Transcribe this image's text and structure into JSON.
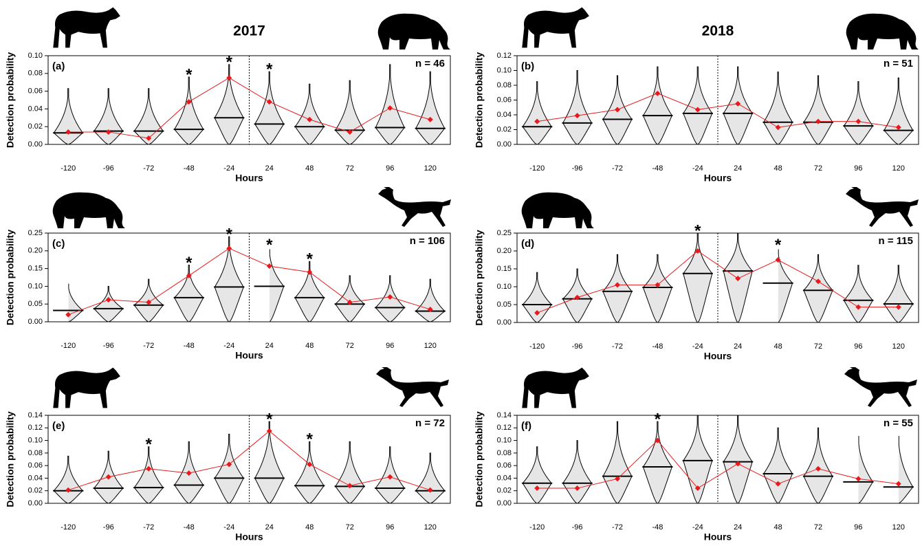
{
  "chart_data": [
    {
      "type": "violin",
      "title": "2017",
      "panel": "(a)",
      "n_label": "n = 46",
      "x_label": "Hours",
      "y_label": "Detection probability",
      "categories": [
        -120,
        -96,
        -72,
        -48,
        -24,
        24,
        48,
        72,
        96,
        120
      ],
      "observed": [
        0.014,
        0.014,
        0.007,
        0.048,
        0.075,
        0.048,
        0.028,
        0.014,
        0.041,
        0.028
      ],
      "medians": [
        0.013,
        0.015,
        0.015,
        0.017,
        0.03,
        0.023,
        0.02,
        0.016,
        0.019,
        0.018
      ],
      "upper": [
        0.063,
        0.063,
        0.063,
        0.076,
        0.09,
        0.082,
        0.068,
        0.072,
        0.09,
        0.082
      ],
      "significance": [
        null,
        null,
        null,
        "*",
        "*",
        "*",
        null,
        null,
        null,
        null
      ],
      "observed_color": "#e8191c",
      "ylim": [
        0,
        0.1
      ],
      "yticks": [
        {
          "value": 0,
          "label": "0.00"
        },
        {
          "value": 0.02,
          "label": "0.02"
        },
        {
          "value": 0.04,
          "label": "0.04"
        },
        {
          "value": 0.06,
          "label": "0.06"
        },
        {
          "value": 0.08,
          "label": "0.08"
        },
        {
          "value": 0.1,
          "label": "0.10"
        }
      ]
    },
    {
      "type": "violin",
      "title": "2018",
      "panel": "(b)",
      "n_label": "n = 51",
      "x_label": "Hours",
      "y_label": "Detection probability",
      "categories": [
        -120,
        -96,
        -72,
        -48,
        -24,
        24,
        48,
        72,
        96,
        120
      ],
      "observed": [
        0.031,
        0.039,
        0.047,
        0.069,
        0.047,
        0.055,
        0.023,
        0.031,
        0.031,
        0.023
      ],
      "medians": [
        0.024,
        0.029,
        0.034,
        0.039,
        0.042,
        0.042,
        0.03,
        0.03,
        0.025,
        0.019
      ],
      "upper": [
        0.085,
        0.1,
        0.093,
        0.105,
        0.105,
        0.105,
        0.098,
        0.093,
        0.085,
        0.09
      ],
      "significance": [
        null,
        null,
        null,
        null,
        null,
        null,
        null,
        null,
        null,
        null
      ],
      "observed_color": "#e8191c",
      "ylim": [
        0,
        0.12
      ],
      "yticks": [
        {
          "value": 0,
          "label": "0.00"
        },
        {
          "value": 0.02,
          "label": "0.02"
        },
        {
          "value": 0.04,
          "label": "0.04"
        },
        {
          "value": 0.06,
          "label": "0.06"
        },
        {
          "value": 0.08,
          "label": "0.08"
        },
        {
          "value": 0.1,
          "label": "0.10"
        },
        {
          "value": 0.12,
          "label": "0.12"
        }
      ]
    },
    {
      "type": "violin",
      "panel": "(c)",
      "n_label": "n = 106",
      "x_label": "Hours",
      "y_label": "Detection probability",
      "categories": [
        -120,
        -96,
        -72,
        -48,
        -24,
        24,
        48,
        72,
        96,
        120
      ],
      "observed": [
        0.02,
        0.062,
        0.055,
        0.13,
        0.207,
        0.157,
        0.14,
        0.055,
        0.07,
        0.035
      ],
      "medians": [
        0.032,
        0.037,
        0.047,
        0.068,
        0.098,
        0.1,
        0.068,
        0.05,
        0.04,
        0.03
      ],
      "upper": [
        0.11,
        0.1,
        0.12,
        0.16,
        0.24,
        0.21,
        0.17,
        0.13,
        0.13,
        0.12
      ],
      "significance": [
        null,
        null,
        null,
        "*",
        "*",
        "*",
        "*",
        null,
        null,
        null
      ],
      "observed_color": "#e8191c",
      "ylim": [
        0,
        0.25
      ],
      "yticks": [
        {
          "value": 0,
          "label": "0.00"
        },
        {
          "value": 0.05,
          "label": "0.05"
        },
        {
          "value": 0.1,
          "label": "0.10"
        },
        {
          "value": 0.15,
          "label": "0.15"
        },
        {
          "value": 0.2,
          "label": "0.20"
        },
        {
          "value": 0.25,
          "label": "0.25"
        }
      ]
    },
    {
      "type": "violin",
      "panel": "(d)",
      "n_label": "n = 115",
      "x_label": "Hours",
      "y_label": "Detection probability",
      "categories": [
        -120,
        -96,
        -72,
        -48,
        -24,
        24,
        48,
        72,
        96,
        120
      ],
      "observed": [
        0.027,
        0.07,
        0.105,
        0.105,
        0.2,
        0.123,
        0.175,
        0.115,
        0.043,
        0.043
      ],
      "medians": [
        0.05,
        0.066,
        0.087,
        0.098,
        0.137,
        0.144,
        0.11,
        0.09,
        0.062,
        0.052
      ],
      "upper": [
        0.14,
        0.15,
        0.19,
        0.19,
        0.25,
        0.25,
        0.21,
        0.19,
        0.16,
        0.16
      ],
      "significance": [
        null,
        null,
        null,
        null,
        "*",
        null,
        "*",
        null,
        null,
        null
      ],
      "observed_color": "#e8191c",
      "ylim": [
        0,
        0.25
      ],
      "yticks": [
        {
          "value": 0,
          "label": "0.00"
        },
        {
          "value": 0.05,
          "label": "0.05"
        },
        {
          "value": 0.1,
          "label": "0.10"
        },
        {
          "value": 0.15,
          "label": "0.15"
        },
        {
          "value": 0.2,
          "label": "0.20"
        },
        {
          "value": 0.25,
          "label": "0.25"
        }
      ]
    },
    {
      "type": "violin",
      "panel": "(e)",
      "n_label": "n = 72",
      "x_label": "Hours",
      "y_label": "Detection probability",
      "categories": [
        -120,
        -96,
        -72,
        -48,
        -24,
        24,
        48,
        72,
        96,
        120
      ],
      "observed": [
        0.021,
        0.042,
        0.055,
        0.048,
        0.062,
        0.115,
        0.062,
        0.028,
        0.042,
        0.021
      ],
      "medians": [
        0.02,
        0.024,
        0.025,
        0.029,
        0.04,
        0.04,
        0.028,
        0.027,
        0.024,
        0.02
      ],
      "upper": [
        0.075,
        0.083,
        0.09,
        0.098,
        0.11,
        0.13,
        0.098,
        0.098,
        0.09,
        0.08
      ],
      "significance": [
        null,
        null,
        "*",
        null,
        null,
        "*",
        "*",
        null,
        null,
        null
      ],
      "observed_color": "#e8191c",
      "ylim": [
        0,
        0.14
      ],
      "yticks": [
        {
          "value": 0,
          "label": "0.00"
        },
        {
          "value": 0.02,
          "label": "0.02"
        },
        {
          "value": 0.04,
          "label": "0.04"
        },
        {
          "value": 0.06,
          "label": "0.06"
        },
        {
          "value": 0.08,
          "label": "0.08"
        },
        {
          "value": 0.1,
          "label": "0.10"
        },
        {
          "value": 0.12,
          "label": "0.12"
        },
        {
          "value": 0.14,
          "label": "0.14"
        }
      ]
    },
    {
      "type": "violin",
      "panel": "(f)",
      "n_label": "n = 55",
      "x_label": "Hours",
      "y_label": "Detection probability",
      "categories": [
        -120,
        -96,
        -72,
        -48,
        -24,
        24,
        48,
        72,
        96,
        120
      ],
      "observed": [
        0.024,
        0.024,
        0.039,
        0.1,
        0.024,
        0.063,
        0.031,
        0.055,
        0.039,
        0.031
      ],
      "medians": [
        0.032,
        0.032,
        0.043,
        0.058,
        0.068,
        0.066,
        0.047,
        0.043,
        0.034,
        0.026
      ],
      "upper": [
        0.09,
        0.1,
        0.13,
        0.13,
        0.14,
        0.14,
        0.12,
        0.12,
        0.11,
        0.11
      ],
      "significance": [
        null,
        null,
        null,
        "*",
        null,
        null,
        null,
        null,
        null,
        null
      ],
      "observed_color": "#e8191c",
      "ylim": [
        0,
        0.14
      ],
      "yticks": [
        {
          "value": 0,
          "label": "0.00"
        },
        {
          "value": 0.02,
          "label": "0.02"
        },
        {
          "value": 0.04,
          "label": "0.04"
        },
        {
          "value": 0.06,
          "label": "0.06"
        },
        {
          "value": 0.08,
          "label": "0.08"
        },
        {
          "value": 0.1,
          "label": "0.10"
        },
        {
          "value": 0.12,
          "label": "0.12"
        },
        {
          "value": 0.14,
          "label": "0.14"
        }
      ]
    }
  ]
}
